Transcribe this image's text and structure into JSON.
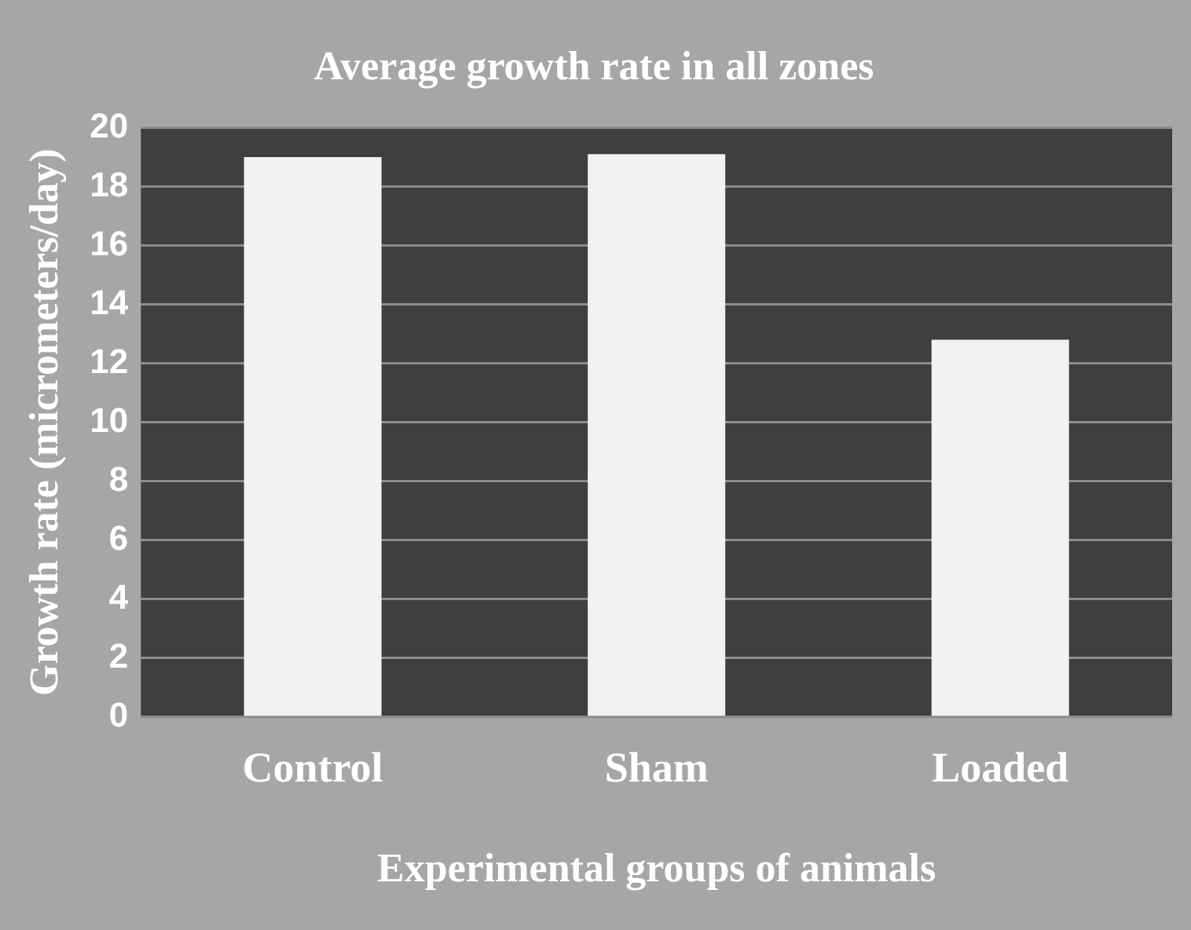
{
  "chart_data": {
    "type": "bar",
    "title": "Average growth rate in all zones",
    "xlabel": "Experimental groups of animals",
    "ylabel": "Growth rate (micrometers/day)",
    "categories": [
      "Control",
      "Sham",
      "Loaded"
    ],
    "values": [
      19.0,
      19.1,
      12.8
    ],
    "color": "#f2f2f2",
    "ylim": [
      0,
      20
    ],
    "yticks": [
      0,
      2,
      4,
      6,
      8,
      10,
      12,
      14,
      16,
      18,
      20
    ],
    "grid": "y",
    "legend": false
  }
}
